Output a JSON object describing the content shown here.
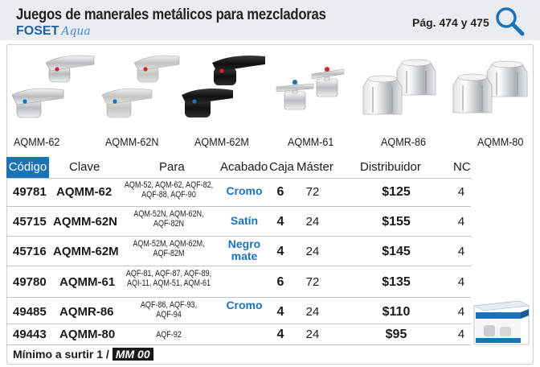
{
  "header": {
    "title": "Juegos de manerales metálicos para mezcladoras",
    "brand": "FOSET",
    "brand_sub": "Aqua",
    "pages": "Pág. 474 y 475"
  },
  "products": [
    {
      "label": "AQMM-62",
      "style": "chrome-lever",
      "accents": [
        "#d8252a",
        "#1c72b8"
      ]
    },
    {
      "label": "AQMM-62N",
      "style": "satin-lever",
      "accents": [
        "#d8252a",
        "#1c72b8"
      ]
    },
    {
      "label": "AQMM-62M",
      "style": "black-lever",
      "accents": [
        "#d8252a",
        "#1c72b8"
      ]
    },
    {
      "label": "AQMM-61",
      "style": "cross-handle",
      "accents": [
        "#d8252a",
        "#1c72b8"
      ]
    },
    {
      "label": "AQMR-86",
      "style": "round-knob",
      "accents": []
    },
    {
      "label": "AQMM-80",
      "style": "round-knob",
      "accents": []
    }
  ],
  "table": {
    "headers": {
      "codigo": "Código",
      "clave": "Clave",
      "para": "Para",
      "acabado": "Acabado",
      "caja": "Caja",
      "master": "Máster",
      "distribuidor": "Distribuidor",
      "nc": "NC"
    },
    "rows": [
      {
        "codigo": "49781",
        "clave": "AQMM-62",
        "para": [
          "AQM-52, AQM-62, AQF-82,",
          "AQF-88, AQF-90"
        ],
        "caja": "6",
        "master": "72",
        "distribuidor": "$125",
        "nc": "4"
      },
      {
        "codigo": "45715",
        "clave": "AQMM-62N",
        "para": [
          "AQM-52N, AQM-62N,",
          "AQF-82N"
        ],
        "caja": "4",
        "master": "24",
        "distribuidor": "$155",
        "nc": "4"
      },
      {
        "codigo": "45716",
        "clave": "AQMM-62M",
        "para": [
          "AQM-52M, AQM-62M,",
          "AQF-82M"
        ],
        "caja": "4",
        "master": "24",
        "distribuidor": "$145",
        "nc": "4"
      },
      {
        "codigo": "49780",
        "clave": "AQMM-61",
        "para": [
          "AQF-81, AQF-87, AQF-89,",
          "AQI-11, AQM-51, AQM-61"
        ],
        "caja": "6",
        "master": "72",
        "distribuidor": "$135",
        "nc": "4"
      },
      {
        "codigo": "49485",
        "clave": "AQMR-86",
        "para": [
          "AQF-86, AQF-93,",
          "AQF-94"
        ],
        "caja": "4",
        "master": "24",
        "distribuidor": "$110",
        "nc": "4"
      },
      {
        "codigo": "49443",
        "clave": "AQMM-80",
        "para": [
          "AQF-92"
        ],
        "caja": "4",
        "master": "24",
        "distribuidor": "$95",
        "nc": "4"
      }
    ],
    "acabados": [
      {
        "lines": [
          "Cromo"
        ]
      },
      {
        "lines": [
          "Satín"
        ]
      },
      {
        "lines": [
          "Negro",
          "mate"
        ]
      },
      {
        "lines": [
          "Cromo"
        ]
      }
    ]
  },
  "footer": {
    "minimo_label": "Mínimo a surtir 1 /",
    "minimo_badge": "MM 00"
  },
  "colors": {
    "accent": "#1c72b8",
    "header_bg": "#e9edf2"
  }
}
